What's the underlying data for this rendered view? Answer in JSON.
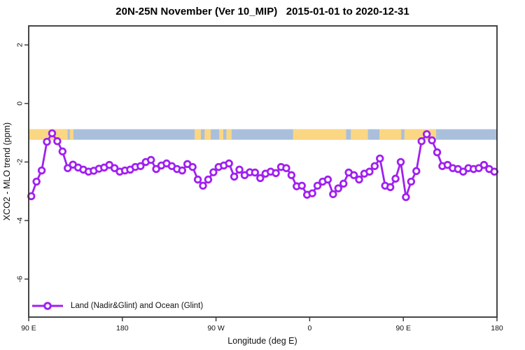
{
  "title": "20N-25N November (Ver 10_MIP)   2015-01-01 to 2020-12-31",
  "legend": {
    "label": "Land (Nadir&Glint) and Ocean (Glint)"
  },
  "colors": {
    "series": "#A020F0",
    "marker_fill": "#FFFFFF",
    "land": "#FBD683",
    "ocean": "#A9BFDC",
    "axis": "#333333"
  },
  "chart_data": {
    "type": "line",
    "title": "20N-25N November (Ver 10_MIP)   2015-01-01 to 2020-12-31",
    "xlabel": "Longitude (deg E)",
    "ylabel": "XCO2 - MLO trend (ppm)",
    "xlim": [
      90,
      540
    ],
    "ylim": [
      -7.3,
      2.65
    ],
    "grid": false,
    "legend_position": "bottom-left",
    "x_ticks": [
      {
        "value": 90,
        "label": "90 E"
      },
      {
        "value": 180,
        "label": "180"
      },
      {
        "value": 270,
        "label": "90 W"
      },
      {
        "value": 360,
        "label": "0"
      },
      {
        "value": 450,
        "label": "90 E"
      },
      {
        "value": 540,
        "label": "180"
      }
    ],
    "y_ticks": [
      {
        "value": 2,
        "label": "2"
      },
      {
        "value": 0,
        "label": "0"
      },
      {
        "value": -2,
        "label": "-2"
      },
      {
        "value": -4,
        "label": "-4"
      },
      {
        "value": -6,
        "label": "-6"
      }
    ],
    "map_band": {
      "description": "land (orange) / ocean (blue) strip along 20N-25N",
      "value_top": -0.88,
      "value_bottom": -1.24,
      "ocean_color": "#A9BFDC",
      "land_color": "#FBD683",
      "ocean_extent": [
        90,
        540
      ],
      "land_segments": [
        [
          90,
          127.5
        ],
        [
          129.5,
          133
        ],
        [
          249.5,
          255.5
        ],
        [
          259,
          265
        ],
        [
          273,
          277
        ],
        [
          280,
          285
        ],
        [
          344,
          395
        ],
        [
          399.5,
          416
        ],
        [
          427,
          448
        ],
        [
          451,
          481.5
        ]
      ]
    },
    "series": [
      {
        "name": "Land (Nadir&Glint) and Ocean (Glint)",
        "color": "#A020F0",
        "marker": "open-circle",
        "x": [
          92.5,
          97.5,
          102.5,
          107.5,
          112.5,
          117.5,
          122.5,
          127.5,
          132.5,
          137.5,
          142.5,
          147.5,
          152.5,
          157.5,
          162.5,
          167.5,
          172.5,
          177.5,
          182.5,
          187.5,
          192.5,
          197.5,
          202.5,
          207.5,
          212.5,
          217.5,
          222.5,
          227.5,
          232.5,
          237.5,
          242.5,
          247.5,
          252.5,
          257.5,
          262.5,
          267.5,
          272.5,
          277.5,
          282.5,
          287.5,
          292.5,
          297.5,
          302.5,
          307.5,
          312.5,
          317.5,
          322.5,
          327.5,
          332.5,
          337.5,
          342.5,
          347.5,
          352.5,
          357.5,
          362.5,
          367.5,
          372.5,
          377.5,
          382.5,
          387.5,
          392.5,
          397.5,
          402.5,
          407.5,
          412.5,
          417.5,
          422.5,
          427.5,
          432.5,
          437.5,
          442.5,
          447.5,
          452.5,
          457.5,
          462.5,
          467.5,
          472.5,
          477.5,
          482.5,
          487.5,
          492.5,
          497.5,
          502.5,
          507.5,
          512.5,
          517.5,
          522.5,
          527.5,
          532.5,
          537.5
        ],
        "y": [
          -3.17,
          -2.67,
          -2.29,
          -1.31,
          -1.02,
          -1.29,
          -1.64,
          -2.21,
          -2.09,
          -2.19,
          -2.26,
          -2.33,
          -2.3,
          -2.23,
          -2.19,
          -2.1,
          -2.21,
          -2.33,
          -2.29,
          -2.26,
          -2.17,
          -2.14,
          -2.0,
          -1.93,
          -2.24,
          -2.12,
          -2.05,
          -2.14,
          -2.24,
          -2.29,
          -2.07,
          -2.17,
          -2.6,
          -2.81,
          -2.6,
          -2.35,
          -2.17,
          -2.12,
          -2.05,
          -2.5,
          -2.26,
          -2.45,
          -2.35,
          -2.36,
          -2.55,
          -2.4,
          -2.33,
          -2.38,
          -2.17,
          -2.21,
          -2.45,
          -2.83,
          -2.81,
          -3.12,
          -3.07,
          -2.81,
          -2.67,
          -2.6,
          -3.1,
          -2.9,
          -2.74,
          -2.36,
          -2.45,
          -2.6,
          -2.4,
          -2.33,
          -2.14,
          -1.88,
          -2.81,
          -2.86,
          -2.57,
          -2.0,
          -3.2,
          -2.67,
          -2.31,
          -1.29,
          -1.05,
          -1.26,
          -1.67,
          -2.14,
          -2.1,
          -2.21,
          -2.24,
          -2.33,
          -2.21,
          -2.24,
          -2.21,
          -2.1,
          -2.24,
          -2.33
        ]
      }
    ]
  }
}
